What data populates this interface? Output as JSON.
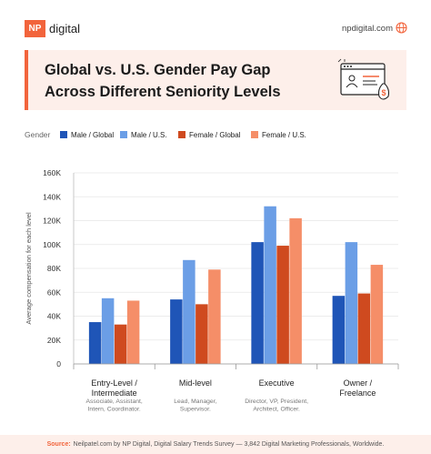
{
  "brand": {
    "logo_text": "NP",
    "name": "digital"
  },
  "site_url": "npdigital.com",
  "icons": {
    "globe": "globe-icon",
    "illustration": "salary-browser-illustration"
  },
  "colors": {
    "accent": "#f2643c",
    "panel": "#fdefea",
    "male_global": "#1f55b7",
    "male_us": "#6b9ee6",
    "female_global": "#cf4a1f",
    "female_us": "#f58e68"
  },
  "footer": {
    "source_label": "Source:",
    "source_text": "Neilpatel.com by NP Digital, Digital Salary Trends Survey — 3,842 Digital Marketing Professionals, Worldwide."
  },
  "chart_data": {
    "type": "bar",
    "title": "Global vs. U.S. Gender Pay Gap Across Different Seniority Levels",
    "title_lines": [
      "Global vs. U.S. Gender Pay Gap",
      "Across Different Seniority Levels"
    ],
    "legend_title": "Gender",
    "legend_placement": "top",
    "ylabel": "Average compensation for each level",
    "ylim": [
      0,
      160000
    ],
    "yticks": [
      0,
      20000,
      40000,
      60000,
      80000,
      100000,
      120000,
      140000,
      160000
    ],
    "ytick_labels": [
      "0",
      "20K",
      "40K",
      "60K",
      "80K",
      "100K",
      "120K",
      "140K",
      "160K"
    ],
    "grid": true,
    "categories": [
      "Entry-Level / Intermediate",
      "Mid-level",
      "Executive",
      "Owner / Freelance"
    ],
    "category_label_lines": [
      [
        "Entry-Level /",
        "Intermediate"
      ],
      [
        "Mid-level"
      ],
      [
        "Executive"
      ],
      [
        "Owner /",
        "Freelance"
      ]
    ],
    "category_sublabels": [
      [
        "Associate, Assistant,",
        "Intern, Coordinator."
      ],
      [
        "Lead, Manager,",
        "Supervisor."
      ],
      [
        "Director, VP, President,",
        "Architect, Officer."
      ],
      []
    ],
    "series": [
      {
        "name": "Male / Global",
        "color": "#1f55b7",
        "values": [
          35000,
          54000,
          102000,
          57000
        ]
      },
      {
        "name": "Male / U.S.",
        "color": "#6b9ee6",
        "values": [
          55000,
          87000,
          132000,
          102000
        ]
      },
      {
        "name": "Female / Global",
        "color": "#cf4a1f",
        "values": [
          33000,
          50000,
          99000,
          59000
        ]
      },
      {
        "name": "Female / U.S.",
        "color": "#f58e68",
        "values": [
          53000,
          79000,
          122000,
          83000
        ]
      }
    ]
  }
}
